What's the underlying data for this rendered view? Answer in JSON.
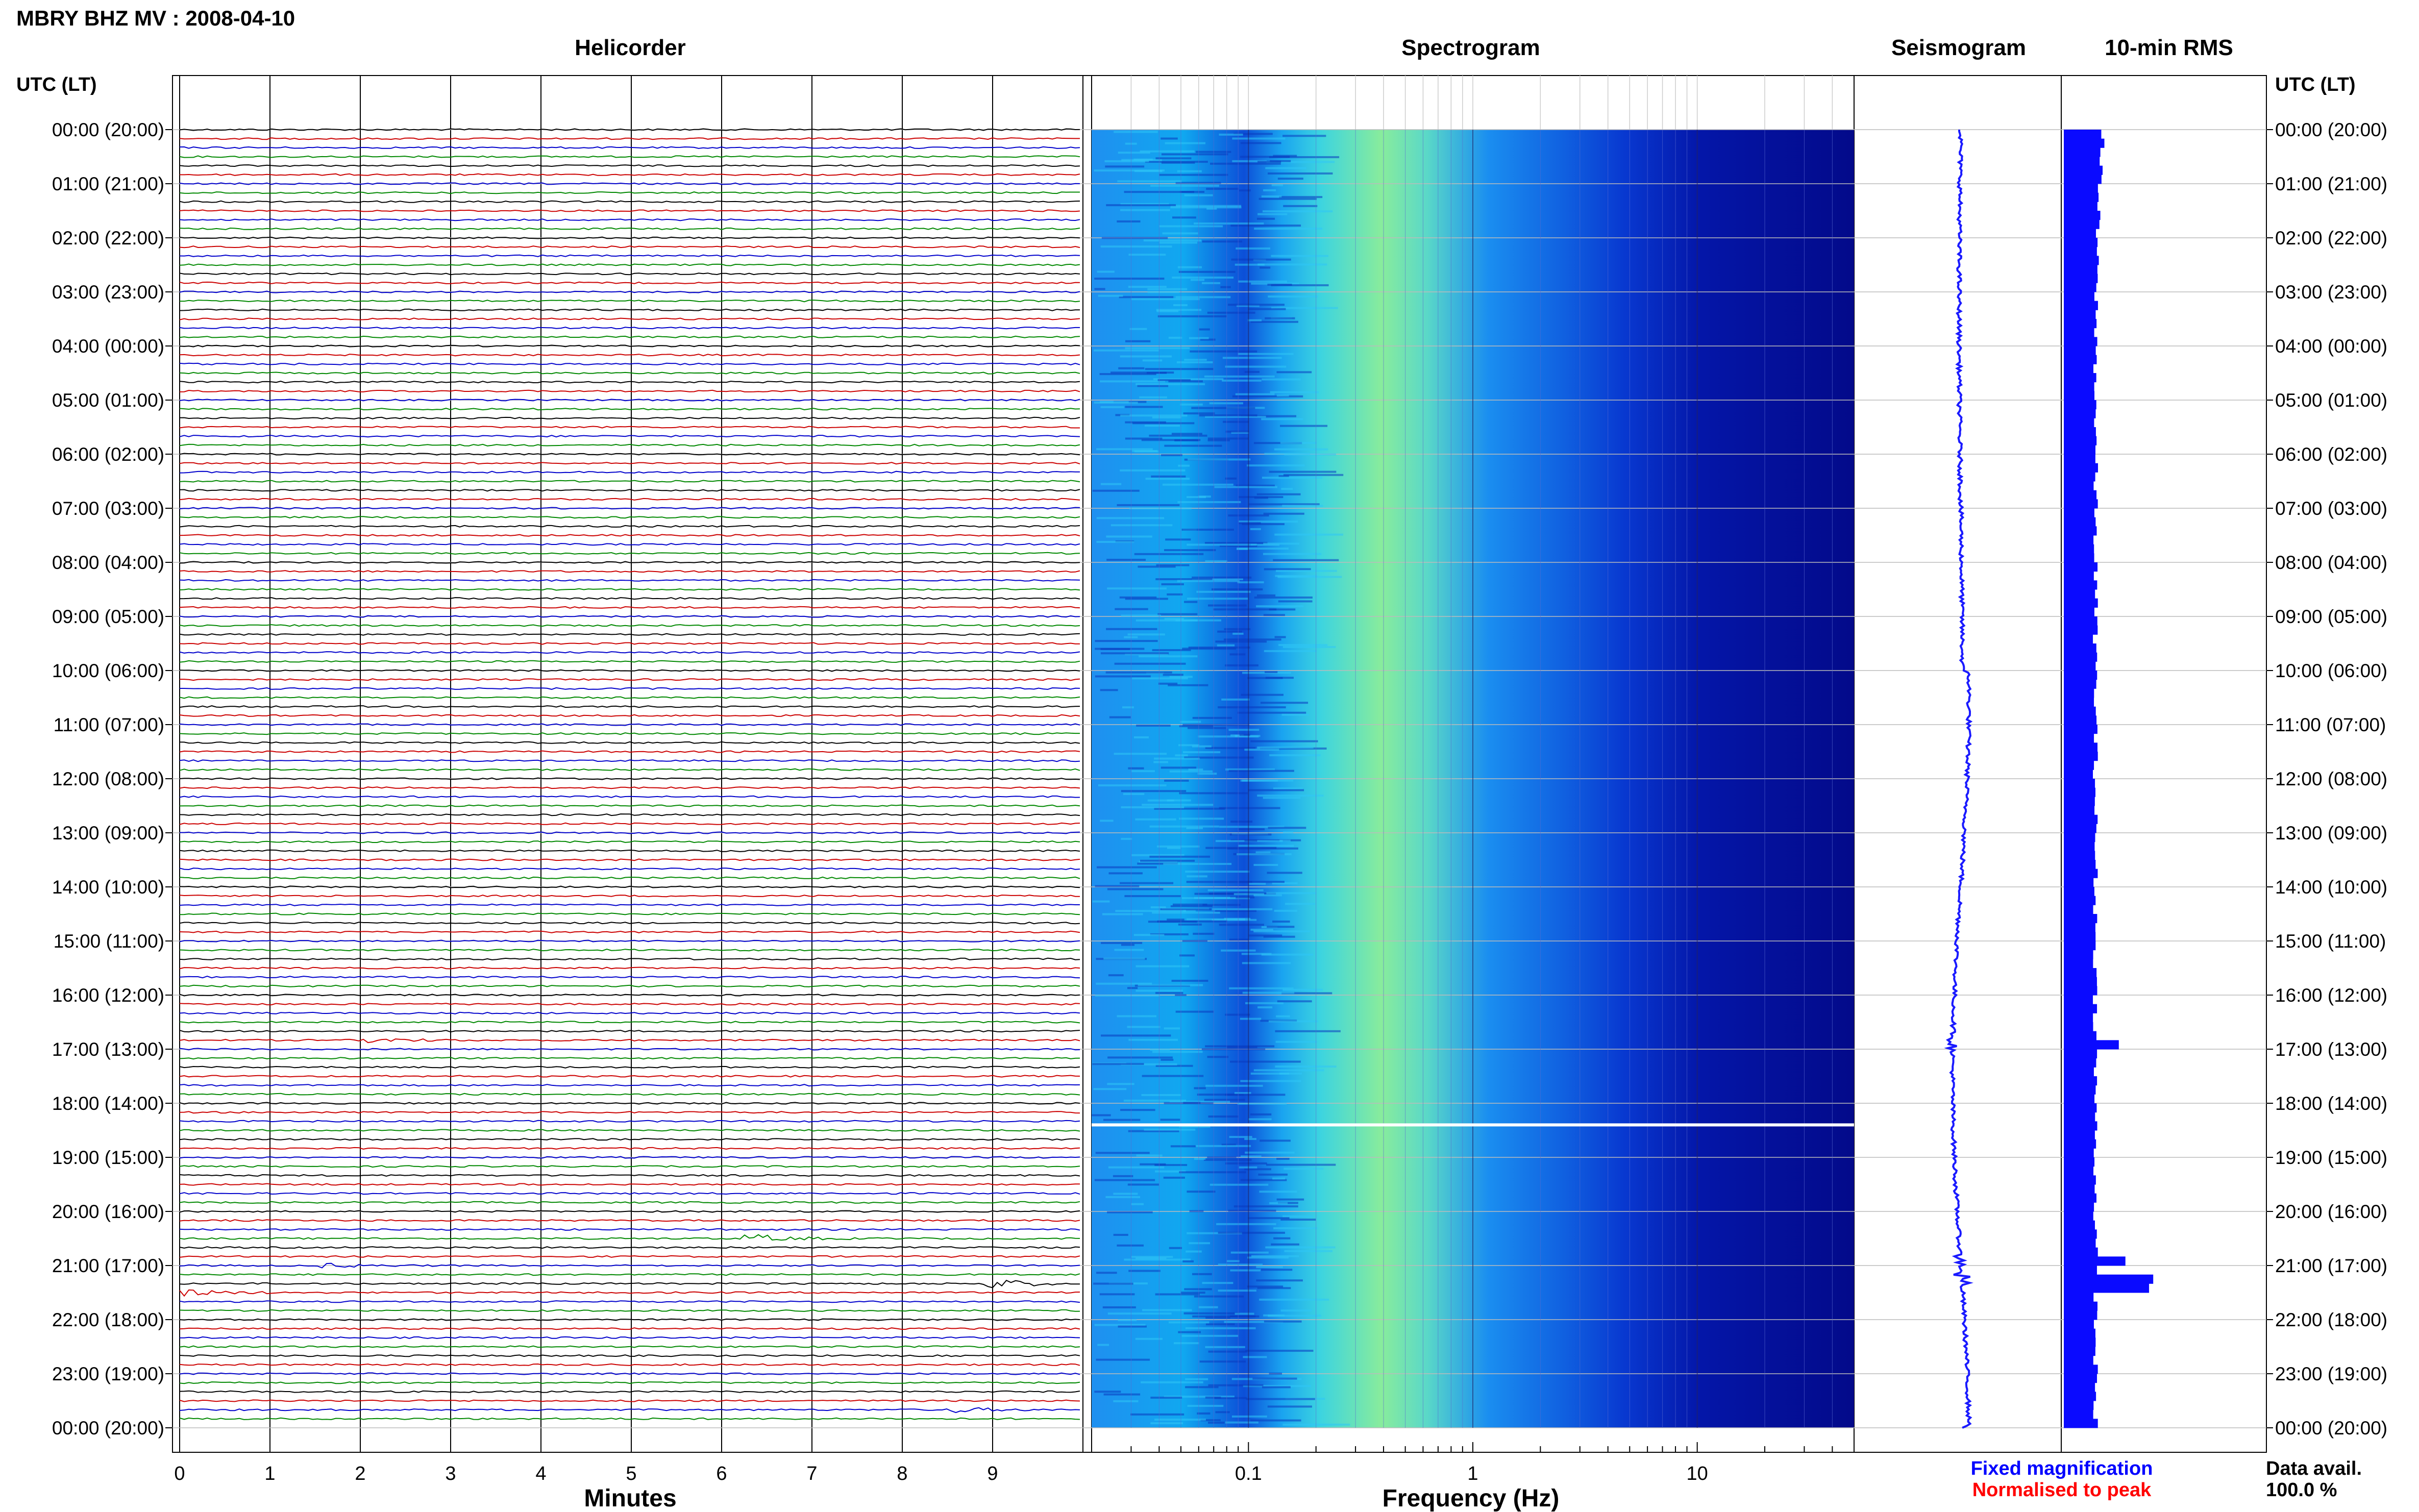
{
  "title": "MBRY BHZ MV : 2008-04-10",
  "panels": {
    "helicorder": "Helicorder",
    "spectrogram": "Spectrogram",
    "seismogram": "Seismogram",
    "rms": "10-min RMS"
  },
  "axis_header": "UTC (LT)",
  "footer": {
    "fixed": "Fixed magnification",
    "normalised": "Normalised to peak",
    "avail_label": "Data avail.",
    "avail_value": "100.0 %"
  },
  "colors": {
    "trace_cycle": [
      "#000000",
      "#cc0000",
      "#0000cc",
      "#008800"
    ],
    "seismogram": "#1a1aff",
    "rms": "#0a0aff",
    "fixed": "#0000ff",
    "normalised": "#ff0000"
  },
  "chart_data": [
    {
      "type": "line",
      "panel": "helicorder",
      "xlabel": "Minutes",
      "xticks": [
        "0",
        "1",
        "2",
        "3",
        "4",
        "5",
        "6",
        "7",
        "8",
        "9"
      ],
      "xlim": [
        0,
        10
      ],
      "ylabels": [
        "00:00 (20:00)",
        "01:00 (21:00)",
        "02:00 (22:00)",
        "03:00 (23:00)",
        "04:00 (00:00)",
        "05:00 (01:00)",
        "06:00 (02:00)",
        "07:00 (03:00)",
        "08:00 (04:00)",
        "09:00 (05:00)",
        "10:00 (06:00)",
        "11:00 (07:00)",
        "12:00 (08:00)",
        "13:00 (09:00)",
        "14:00 (10:00)",
        "15:00 (11:00)",
        "16:00 (12:00)",
        "17:00 (13:00)",
        "18:00 (14:00)",
        "19:00 (15:00)",
        "20:00 (16:00)",
        "21:00 (17:00)",
        "22:00 (18:00)",
        "23:00 (19:00)",
        "00:00 (20:00)"
      ],
      "row_minutes": 10,
      "rows": 144,
      "events": [
        {
          "hour": 16.9,
          "minute": 2.2,
          "amp": 0.4
        },
        {
          "hour": 21.0,
          "minute": 1.6,
          "amp": 0.4
        },
        {
          "hour": 20.5,
          "minute": 6.4,
          "amp": 0.7
        },
        {
          "hour": 21.3,
          "minute": 9.0,
          "amp": 1.0
        },
        {
          "hour": 21.5,
          "minute": 0.1,
          "amp": 0.6
        },
        {
          "hour": 23.7,
          "minute": 8.6,
          "amp": 0.5
        }
      ]
    },
    {
      "type": "heatmap",
      "panel": "spectrogram",
      "xlabel": "Frequency (Hz)",
      "xscale": "log",
      "xlim": [
        0.02,
        50
      ],
      "xticks": [
        "0.1",
        "1",
        "10"
      ],
      "gap_hour": 18.4
    },
    {
      "type": "line",
      "panel": "seismogram"
    },
    {
      "type": "bar",
      "panel": "rms",
      "spikes": [
        {
          "hour": 21.25,
          "value": 1.0
        },
        {
          "hour": 20.9,
          "value": 0.5
        },
        {
          "hour": 16.9,
          "value": 0.4
        }
      ]
    }
  ]
}
